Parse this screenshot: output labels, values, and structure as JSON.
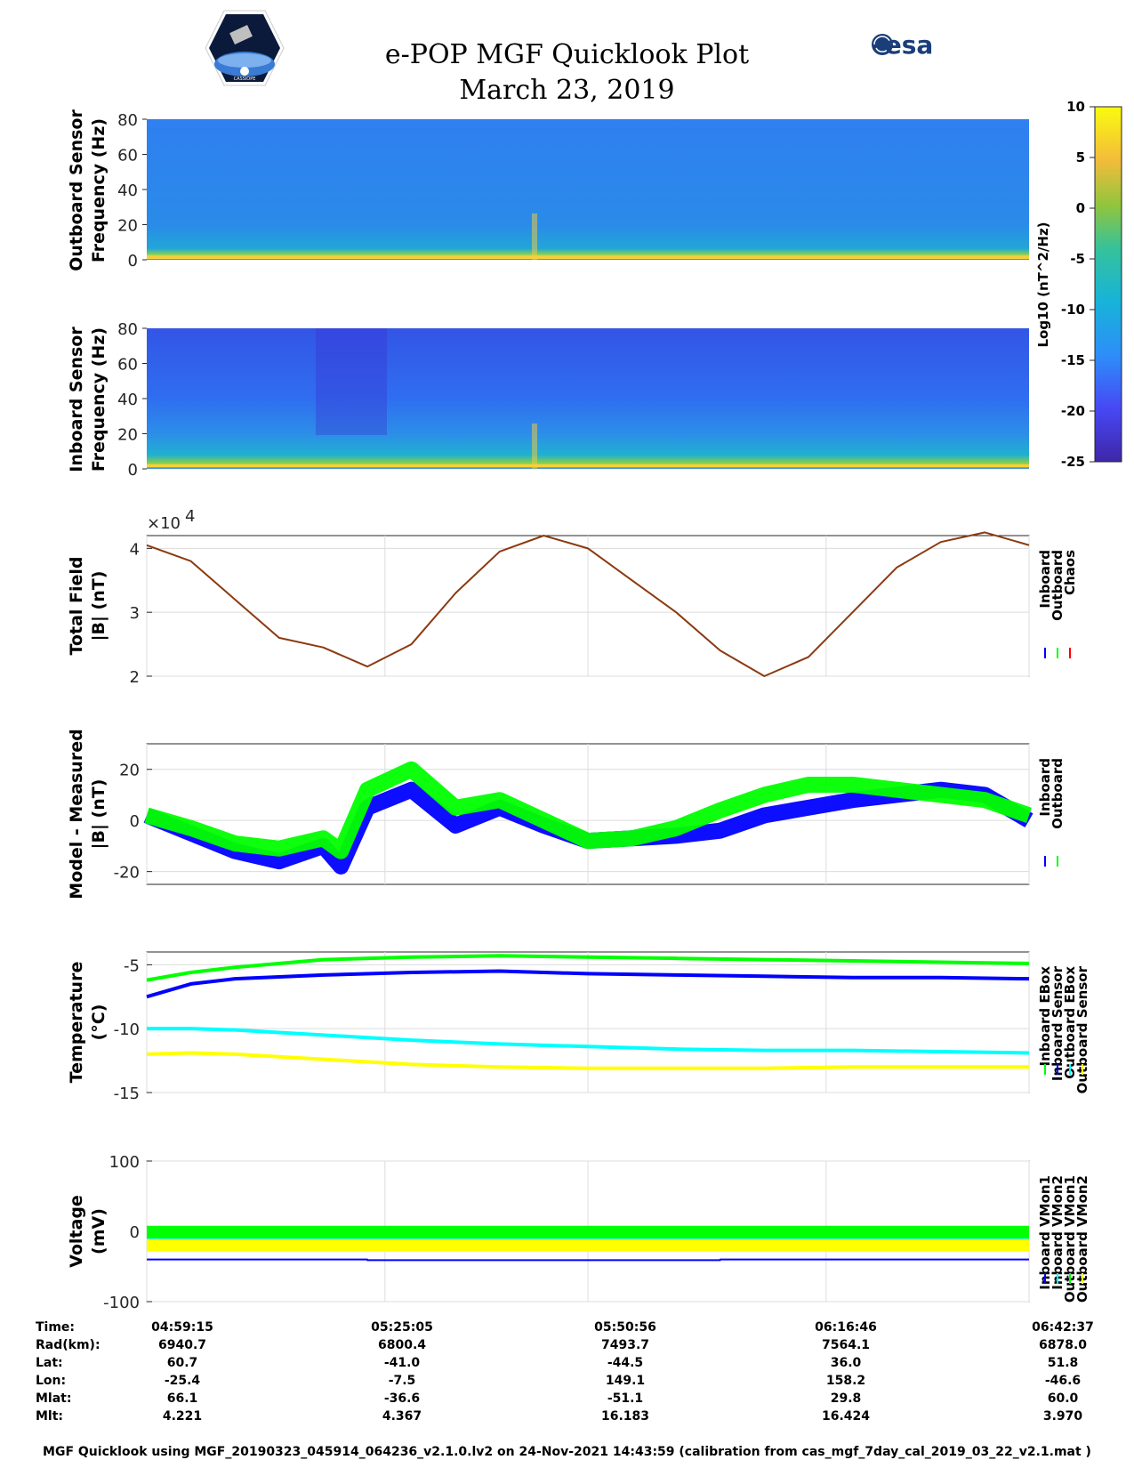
{
  "header": {
    "title": "e-POP MGF Quicklook Plot",
    "date": "March 23, 2019",
    "left_logo_text": "CASSIOPE",
    "right_logo_text": "esa"
  },
  "colors": {
    "inboard": "#0000ff",
    "outboard": "#00ff00",
    "chaos": "#ff0000",
    "cyan": "#00ffff",
    "yellow": "#ffff00",
    "model_line": "#8b3a0f"
  },
  "colorbar": {
    "label": "Log10 (nT^2/Hz)",
    "ticks": [
      "10",
      "5",
      "0",
      "-5",
      "-10",
      "-15",
      "-20",
      "-25"
    ],
    "min": -25,
    "max": 10
  },
  "chart_data": [
    {
      "type": "heatmap",
      "id": "outboard-spectrogram",
      "ylabel_line1": "Outboard Sensor",
      "ylabel_line2": "Frequency (Hz)",
      "ylim": [
        0,
        80
      ],
      "yticks": [
        "80",
        "60",
        "40",
        "20",
        "0"
      ]
    },
    {
      "type": "heatmap",
      "id": "inboard-spectrogram",
      "ylabel_line1": "Inboard Sensor",
      "ylabel_line2": "Frequency (Hz)",
      "ylim": [
        0,
        80
      ],
      "yticks": [
        "80",
        "60",
        "40",
        "20",
        "0"
      ]
    },
    {
      "type": "line",
      "id": "total-field",
      "ylabel_line1": "Total Field",
      "ylabel_line2": "|B| (nT)",
      "exponent_label": "×10",
      "exponent_power": "4",
      "ylim": [
        2,
        4.2
      ],
      "yticks": [
        "4",
        "3",
        "2"
      ],
      "legend": [
        "Inboard",
        "Outboard",
        "Chaos"
      ],
      "series": [
        {
          "name": "Inboard",
          "x": [
            0,
            0.05,
            0.1,
            0.15,
            0.2,
            0.25,
            0.3,
            0.35,
            0.4,
            0.45,
            0.5,
            0.55,
            0.6,
            0.65,
            0.7,
            0.75,
            0.8,
            0.85,
            0.9,
            0.95,
            1
          ],
          "y": [
            4.05,
            3.8,
            3.2,
            2.6,
            2.45,
            2.15,
            2.5,
            3.3,
            3.95,
            4.2,
            4.0,
            3.5,
            3.0,
            2.4,
            2.0,
            2.3,
            3.0,
            3.7,
            4.1,
            4.25,
            4.05
          ]
        }
      ]
    },
    {
      "type": "line",
      "id": "model-measured",
      "ylabel_line1": "Model - Measured",
      "ylabel_line2": "|B| (nT)",
      "ylim": [
        -25,
        30
      ],
      "yticks": [
        "20",
        "0",
        "-20"
      ],
      "legend": [
        "Inboard",
        "Outboard"
      ],
      "series": [
        {
          "name": "Inboard",
          "x": [
            0,
            0.05,
            0.1,
            0.15,
            0.2,
            0.22,
            0.25,
            0.3,
            0.35,
            0.4,
            0.45,
            0.5,
            0.55,
            0.6,
            0.65,
            0.7,
            0.75,
            0.8,
            0.85,
            0.9,
            0.95,
            1
          ],
          "y": [
            2,
            -5,
            -12,
            -16,
            -10,
            -18,
            5,
            12,
            -2,
            5,
            -2,
            -8,
            -7,
            -6,
            -4,
            2,
            5,
            8,
            10,
            12,
            10,
            0
          ]
        },
        {
          "name": "Outboard",
          "x": [
            0,
            0.05,
            0.1,
            0.15,
            0.2,
            0.22,
            0.25,
            0.3,
            0.35,
            0.4,
            0.45,
            0.5,
            0.55,
            0.6,
            0.65,
            0.7,
            0.75,
            0.8,
            0.85,
            0.9,
            0.95,
            1
          ],
          "y": [
            2,
            -3,
            -9,
            -11,
            -7,
            -12,
            12,
            20,
            5,
            8,
            0,
            -8,
            -7,
            -3,
            4,
            10,
            14,
            14,
            12,
            10,
            8,
            2
          ]
        }
      ]
    },
    {
      "type": "line",
      "id": "temperature",
      "ylabel_line1": "Temperature",
      "ylabel_line2": "(°C)",
      "ylim": [
        -15,
        -4
      ],
      "yticks": [
        "-5",
        "-10",
        "-15"
      ],
      "legend": [
        "Inboard EBox",
        "Inboard Sensor",
        "Outboard EBox",
        "Outboard Sensor"
      ],
      "series": [
        {
          "name": "Inboard EBox",
          "x": [
            0,
            0.05,
            0.1,
            0.2,
            0.3,
            0.4,
            0.5,
            0.6,
            0.7,
            0.8,
            0.9,
            1
          ],
          "y": [
            -6.2,
            -5.6,
            -5.2,
            -4.6,
            -4.4,
            -4.3,
            -4.4,
            -4.5,
            -4.6,
            -4.7,
            -4.8,
            -4.9
          ]
        },
        {
          "name": "Inboard Sensor",
          "x": [
            0,
            0.05,
            0.1,
            0.2,
            0.3,
            0.4,
            0.5,
            0.6,
            0.7,
            0.8,
            0.9,
            1
          ],
          "y": [
            -7.5,
            -6.5,
            -6.1,
            -5.8,
            -5.6,
            -5.5,
            -5.7,
            -5.8,
            -5.9,
            -6.0,
            -6.0,
            -6.1
          ]
        },
        {
          "name": "Outboard EBox",
          "x": [
            0,
            0.05,
            0.1,
            0.2,
            0.3,
            0.4,
            0.5,
            0.6,
            0.7,
            0.8,
            0.9,
            1
          ],
          "y": [
            -10.0,
            -10.0,
            -10.1,
            -10.5,
            -10.9,
            -11.2,
            -11.4,
            -11.6,
            -11.7,
            -11.7,
            -11.8,
            -11.9
          ]
        },
        {
          "name": "Outboard Sensor",
          "x": [
            0,
            0.05,
            0.1,
            0.2,
            0.3,
            0.4,
            0.5,
            0.6,
            0.7,
            0.8,
            0.9,
            1
          ],
          "y": [
            -12.0,
            -11.9,
            -12.0,
            -12.4,
            -12.8,
            -13.0,
            -13.1,
            -13.1,
            -13.1,
            -13.0,
            -13.0,
            -13.0
          ]
        }
      ]
    },
    {
      "type": "line",
      "id": "voltage",
      "ylabel_line1": "Voltage",
      "ylabel_line2": "(mV)",
      "ylim": [
        -100,
        100
      ],
      "yticks": [
        "100",
        "0",
        "-100"
      ],
      "legend": [
        "Inboard VMon1",
        "Inboard VMon2",
        "Outboard VMon1",
        "Outboard VMon2"
      ],
      "series": [
        {
          "name": "Inboard VMon1",
          "x": [
            0,
            0.25,
            0.25,
            0.65,
            0.65,
            0.9,
            0.9,
            1
          ],
          "y": [
            -40,
            -40,
            -41,
            -41,
            -40,
            -40,
            -40,
            -40
          ]
        },
        {
          "name": "Inboard VMon2",
          "x": [
            0,
            1
          ],
          "y": [
            -12,
            -12
          ]
        },
        {
          "name": "Outboard VMon1",
          "x": [
            0,
            1
          ],
          "y": [
            -1,
            -1
          ]
        },
        {
          "name": "Outboard VMon2",
          "x": [
            0,
            1
          ],
          "y": [
            -20,
            -20
          ]
        }
      ]
    }
  ],
  "orbit_info": {
    "labels": [
      "Time:",
      "Rad(km):",
      "Lat:",
      "Lon:",
      "Mlat:",
      "Mlt:"
    ],
    "columns": [
      [
        "04:59:15",
        "6940.7",
        "60.7",
        "-25.4",
        "66.1",
        "4.221"
      ],
      [
        "05:25:05",
        "6800.4",
        "-41.0",
        "-7.5",
        "-36.6",
        "4.367"
      ],
      [
        "05:50:56",
        "7493.7",
        "-44.5",
        "149.1",
        "-51.1",
        "16.183"
      ],
      [
        "06:16:46",
        "7564.1",
        "36.0",
        "158.2",
        "29.8",
        "16.424"
      ],
      [
        "06:42:37",
        "6878.0",
        "51.8",
        "-46.6",
        "60.0",
        "3.970"
      ]
    ]
  },
  "footer": "MGF Quicklook using MGF_20190323_045914_064236_v2.1.0.lv2 on 24-Nov-2021 14:43:59 (calibration from cas_mgf_7day_cal_2019_03_22_v2.1.mat )"
}
